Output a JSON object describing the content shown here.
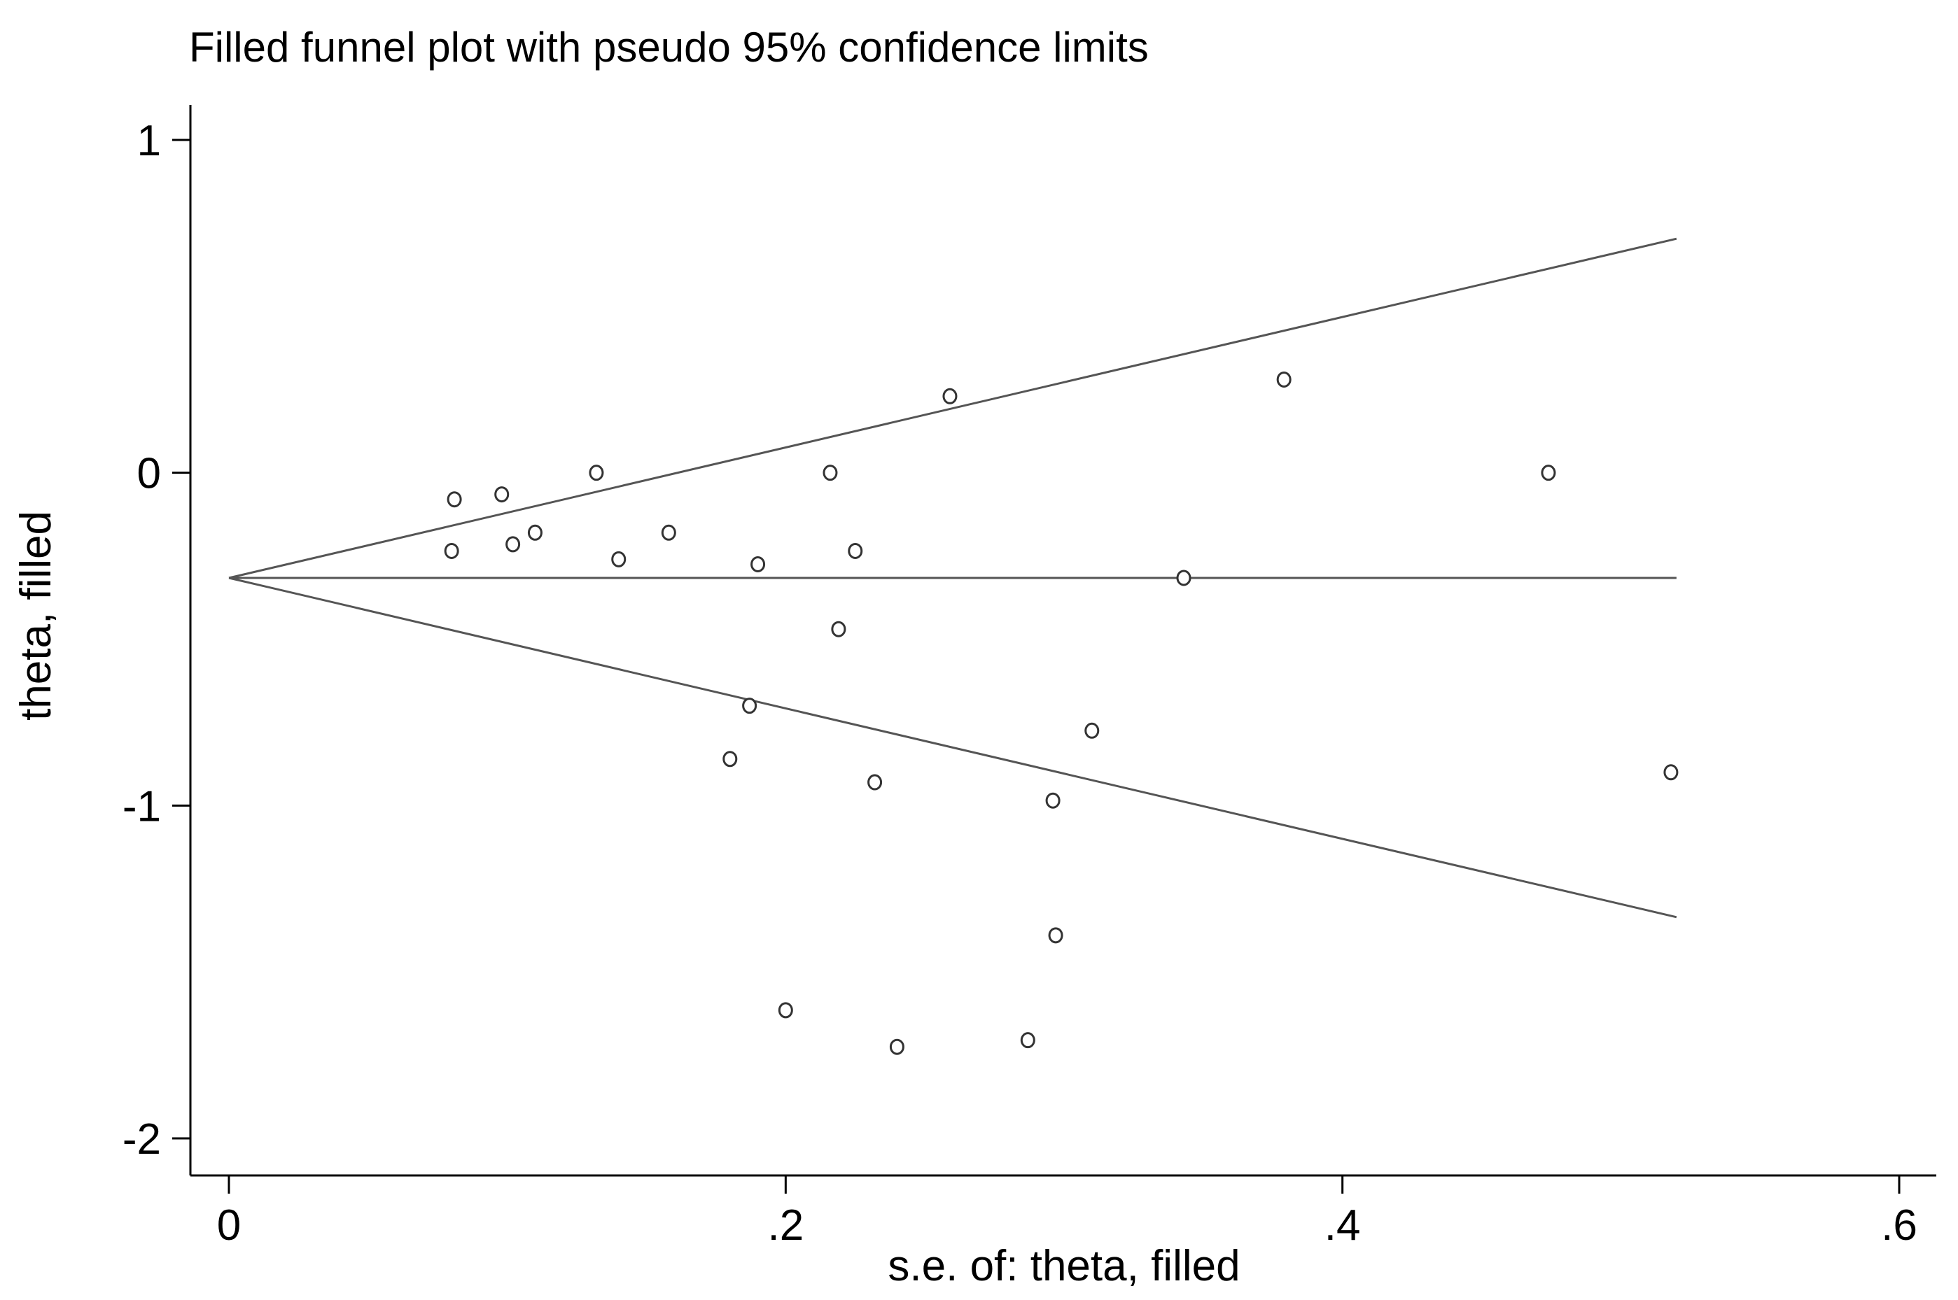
{
  "chart_data": {
    "type": "scatter",
    "title": "Filled funnel plot with pseudo 95% confidence limits",
    "xlabel": "s.e. of: theta, filled",
    "ylabel": "theta, filled",
    "xlim": [
      -0.014,
      0.614
    ],
    "ylim": [
      -2.1,
      1.1
    ],
    "xticks": [
      0,
      0.2,
      0.4,
      0.6
    ],
    "xtick_labels": [
      "0",
      ".2",
      ".4",
      ".6"
    ],
    "yticks": [
      1,
      0,
      -1,
      -2
    ],
    "ytick_labels": [
      "1",
      "0",
      "-1",
      "-2"
    ],
    "grid": false,
    "pooled_estimate": -0.316,
    "funnel_max_se": 0.52,
    "points": [
      {
        "se": 0.081,
        "theta": -0.08
      },
      {
        "se": 0.08,
        "theta": -0.235
      },
      {
        "se": 0.098,
        "theta": -0.065
      },
      {
        "se": 0.102,
        "theta": -0.215
      },
      {
        "se": 0.11,
        "theta": -0.18
      },
      {
        "se": 0.132,
        "theta": 0.0
      },
      {
        "se": 0.14,
        "theta": -0.26
      },
      {
        "se": 0.158,
        "theta": -0.18
      },
      {
        "se": 0.18,
        "theta": -0.86
      },
      {
        "se": 0.187,
        "theta": -0.7
      },
      {
        "se": 0.19,
        "theta": -0.275
      },
      {
        "se": 0.2,
        "theta": -1.615
      },
      {
        "se": 0.216,
        "theta": 0.0
      },
      {
        "se": 0.219,
        "theta": -0.47
      },
      {
        "se": 0.225,
        "theta": -0.235
      },
      {
        "se": 0.232,
        "theta": -0.93
      },
      {
        "se": 0.24,
        "theta": -1.725
      },
      {
        "se": 0.259,
        "theta": 0.23
      },
      {
        "se": 0.287,
        "theta": -1.705
      },
      {
        "se": 0.296,
        "theta": -0.985
      },
      {
        "se": 0.297,
        "theta": -1.39
      },
      {
        "se": 0.31,
        "theta": -0.775
      },
      {
        "se": 0.343,
        "theta": -0.316
      },
      {
        "se": 0.379,
        "theta": 0.28
      },
      {
        "se": 0.474,
        "theta": 0.0
      },
      {
        "se": 0.518,
        "theta": -0.9
      }
    ]
  }
}
